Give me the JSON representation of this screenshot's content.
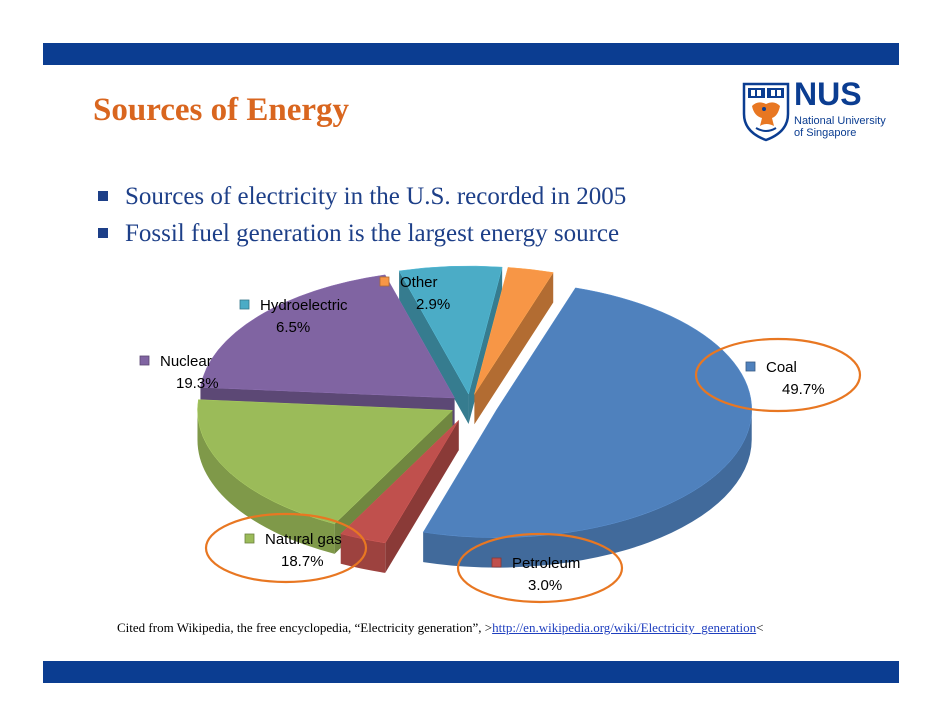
{
  "slide": {
    "title": "Sources of Energy",
    "bullets": [
      "Sources of electricity in the U.S. recorded in 2005",
      "Fossil fuel generation is the largest energy source"
    ],
    "citation": {
      "text": "Cited from  Wikipedia, the free encyclopedia, “Electricity generation”, >",
      "link": "http://en.wikipedia.org/wiki/Electricity_generation",
      "suffix": "<"
    }
  },
  "logo": {
    "name": "NUS",
    "subtitle": "National University\nof Singapore"
  },
  "colors": {
    "bar": "#0b3d91",
    "title": "#d9661f",
    "bullet_text": "#1d3f88",
    "highlight_circle": "#e87722"
  },
  "chart_data": {
    "type": "pie",
    "style": "3d-exploded",
    "categories": [
      "Coal",
      "Petroleum",
      "Natural gas",
      "Nuclear",
      "Hydroelectric",
      "Other"
    ],
    "values": [
      49.7,
      3.0,
      18.7,
      19.3,
      6.5,
      2.9
    ],
    "value_labels": [
      "49.7%",
      "3.0%",
      "18.7%",
      "19.3%",
      "6.5%",
      "2.9%"
    ],
    "colors": [
      "#4f81bd",
      "#c0504d",
      "#9bbb59",
      "#8064a2",
      "#4bacc6",
      "#f79646"
    ],
    "highlighted": [
      "Coal",
      "Natural gas",
      "Petroleum"
    ]
  }
}
